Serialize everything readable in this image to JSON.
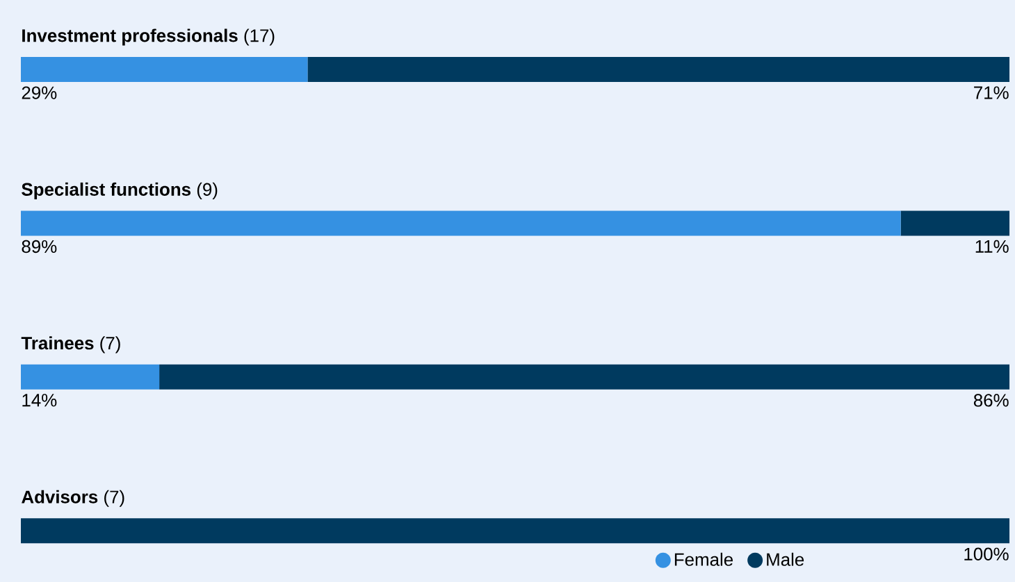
{
  "chart_data": {
    "type": "bar",
    "orientation": "horizontal",
    "stacked": true,
    "categories": [
      "**Investment professionals** (17)",
      "**Specialist functions** (9)",
      "**Trainees** (7)",
      "**Advisors** (7)"
    ],
    "series": [
      {
        "name": "Female",
        "color": "#3591e2",
        "values": [
          29,
          89,
          14,
          0
        ],
        "value_labels": [
          "29%",
          "89%",
          "14%",
          null
        ]
      },
      {
        "name": "Male",
        "color": "#003a5f",
        "values": [
          71,
          11,
          86,
          100
        ],
        "value_labels": [
          "71%",
          "11%",
          "86%",
          "100%"
        ]
      }
    ],
    "legend": "bottom right"
  }
}
